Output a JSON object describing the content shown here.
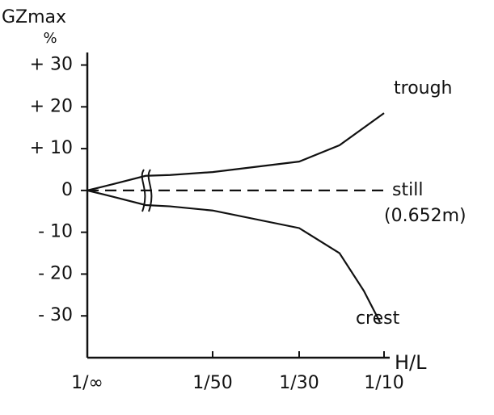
{
  "chart_data": {
    "type": "line",
    "ylabel": "GZmax",
    "yunit": "%",
    "xlabel": "H/L",
    "ylim": [
      -40,
      33
    ],
    "yticks": [
      {
        "value": 30,
        "label": "+ 30"
      },
      {
        "value": 20,
        "label": "+ 20"
      },
      {
        "value": 10,
        "label": "+ 10"
      },
      0,
      {
        "value": -10,
        "label": "- 10"
      },
      {
        "value": -20,
        "label": "- 20"
      },
      {
        "value": -30,
        "label": "- 30"
      }
    ],
    "xlim": [
      0,
      0.1
    ],
    "xticks": [
      {
        "value": 0,
        "label": "1/∞"
      },
      {
        "value": 0.02,
        "label": "1/50"
      },
      {
        "value": 0.0333,
        "label": "1/30"
      },
      {
        "value": 0.1,
        "label": "1/10"
      }
    ],
    "series": [
      {
        "name": "trough",
        "color": "#111111",
        "x": [
          0,
          0.0041,
          0.0093,
          0.0132,
          0.02,
          0.0333,
          0.065,
          0.1
        ],
        "values": [
          0,
          1.5,
          3.5,
          3.7,
          4.4,
          6.9,
          10.8,
          18.5
        ]
      },
      {
        "name": "still",
        "color": "#111111",
        "dashed": true,
        "annotation": "(0.652m)",
        "x": [
          0,
          0.1
        ],
        "values": [
          0,
          0
        ]
      },
      {
        "name": "crest",
        "color": "#111111",
        "x": [
          0,
          0.0041,
          0.0093,
          0.0132,
          0.02,
          0.0333,
          0.065,
          0.0841,
          0.0968
        ],
        "values": [
          0,
          -1.5,
          -3.5,
          -3.8,
          -4.8,
          -9,
          -15,
          -24,
          -31.5
        ]
      }
    ]
  }
}
